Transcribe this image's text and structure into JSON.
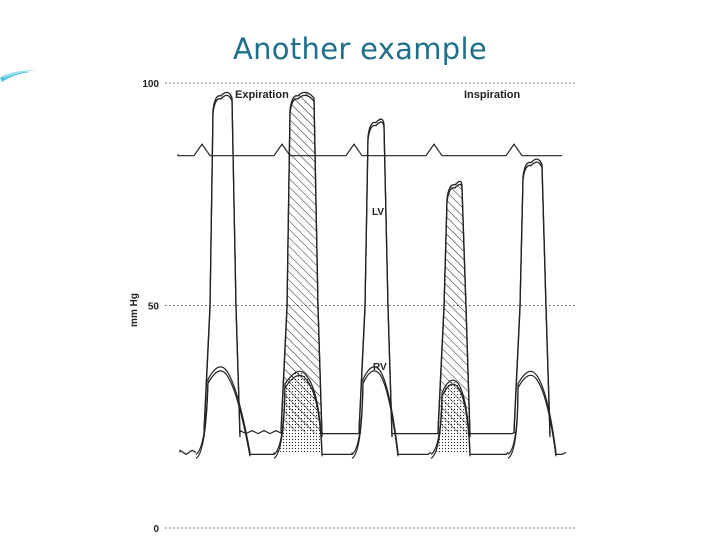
{
  "slide": {
    "title": "Another example",
    "accent_color": "#1f6f8b"
  },
  "chart_data": {
    "type": "line",
    "ylabel": "mm Hg",
    "ylim": [
      0,
      100
    ],
    "yticks": [
      0,
      50,
      100
    ],
    "grid": "dotted horizontal at ticks",
    "annotations": {
      "phase_left": "Expiration",
      "phase_right": "Inspiration",
      "lv_label": "LV",
      "rv_label": "RV"
    },
    "series": [
      {
        "name": "LV",
        "beats": [
          {
            "peak": 98,
            "shaded": false
          },
          {
            "peak": 98,
            "shaded": true
          },
          {
            "peak": 92,
            "shaded": false
          },
          {
            "peak": 78,
            "shaded": true
          },
          {
            "peak": 83,
            "shaded": false
          }
        ]
      },
      {
        "name": "RV",
        "beats": [
          {
            "peak": 37,
            "shaded": false
          },
          {
            "peak": 36,
            "shaded": true
          },
          {
            "peak": 37,
            "shaded": false
          },
          {
            "peak": 34,
            "shaded": true
          },
          {
            "peak": 36,
            "shaded": false
          }
        ]
      }
    ],
    "baseline_trace": {
      "level": 84
    }
  }
}
